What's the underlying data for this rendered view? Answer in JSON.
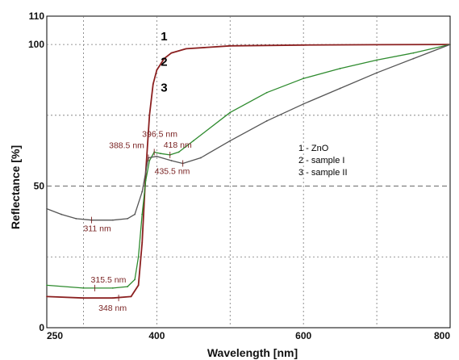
{
  "chart_data": {
    "type": "line",
    "xlabel": "Wavelength [nm]",
    "ylabel": "Reflectance [%]",
    "xlim": [
      250,
      800
    ],
    "ylim": [
      0,
      110
    ],
    "x_ticks": [
      "250",
      "400",
      "600",
      "800"
    ],
    "y_ticks": [
      "0",
      "50",
      "100",
      "110"
    ],
    "grid": true,
    "series": [
      {
        "name": "1 - ZnO",
        "label": "1",
        "color": "#8b2020",
        "points": [
          [
            250,
            11
          ],
          [
            300,
            10.5
          ],
          [
            340,
            10.5
          ],
          [
            365,
            11
          ],
          [
            375,
            15
          ],
          [
            380,
            30
          ],
          [
            385,
            55
          ],
          [
            390,
            75
          ],
          [
            395,
            86
          ],
          [
            400,
            91
          ],
          [
            410,
            95
          ],
          [
            420,
            97
          ],
          [
            440,
            98.5
          ],
          [
            500,
            99.5
          ],
          [
            600,
            99.8
          ],
          [
            700,
            99.9
          ],
          [
            800,
            100
          ]
        ]
      },
      {
        "name": "2 - sample I",
        "label": "2",
        "color": "#2e8b2e",
        "points": [
          [
            250,
            15
          ],
          [
            300,
            14
          ],
          [
            340,
            14
          ],
          [
            360,
            14.5
          ],
          [
            370,
            17
          ],
          [
            375,
            25
          ],
          [
            380,
            40
          ],
          [
            385,
            52
          ],
          [
            390,
            59
          ],
          [
            396.5,
            62
          ],
          [
            405,
            61.5
          ],
          [
            418,
            61
          ],
          [
            430,
            62
          ],
          [
            450,
            66
          ],
          [
            500,
            76
          ],
          [
            550,
            83
          ],
          [
            600,
            88
          ],
          [
            650,
            91.5
          ],
          [
            700,
            94.5
          ],
          [
            750,
            97
          ],
          [
            800,
            100
          ]
        ]
      },
      {
        "name": "3 - sample II",
        "label": "3",
        "color": "#555555",
        "points": [
          [
            250,
            42
          ],
          [
            270,
            40
          ],
          [
            290,
            38.5
          ],
          [
            311,
            38
          ],
          [
            340,
            38
          ],
          [
            360,
            38.5
          ],
          [
            370,
            40
          ],
          [
            380,
            48
          ],
          [
            388.5,
            60
          ],
          [
            400,
            60.5
          ],
          [
            420,
            59
          ],
          [
            435.5,
            58
          ],
          [
            460,
            60
          ],
          [
            500,
            66
          ],
          [
            550,
            73
          ],
          [
            600,
            79
          ],
          [
            650,
            84.5
          ],
          [
            700,
            90
          ],
          [
            750,
            95
          ],
          [
            800,
            100
          ]
        ]
      }
    ],
    "legend": {
      "placement": "right-middle",
      "entries": [
        "1 - ZnO",
        "2 - sample I",
        "3 - sample II"
      ]
    },
    "annotations": [
      {
        "text": "311 nm",
        "series": "3 - sample II",
        "x": 311,
        "y": 38
      },
      {
        "text": "315.5 nm",
        "series": "2 - sample I",
        "x": 315.5,
        "y": 14
      },
      {
        "text": "348 nm",
        "series": "1 - ZnO",
        "x": 348,
        "y": 10.5
      },
      {
        "text": "388.5 nm",
        "series": "3 - sample II",
        "x": 388.5,
        "y": 60
      },
      {
        "text": "396.5 nm",
        "series": "2 - sample I",
        "x": 396.5,
        "y": 62
      },
      {
        "text": "418 nm",
        "series": "2 - sample I",
        "x": 418,
        "y": 61
      },
      {
        "text": "435.5 nm",
        "series": "3 - sample II",
        "x": 435.5,
        "y": 58
      }
    ]
  }
}
